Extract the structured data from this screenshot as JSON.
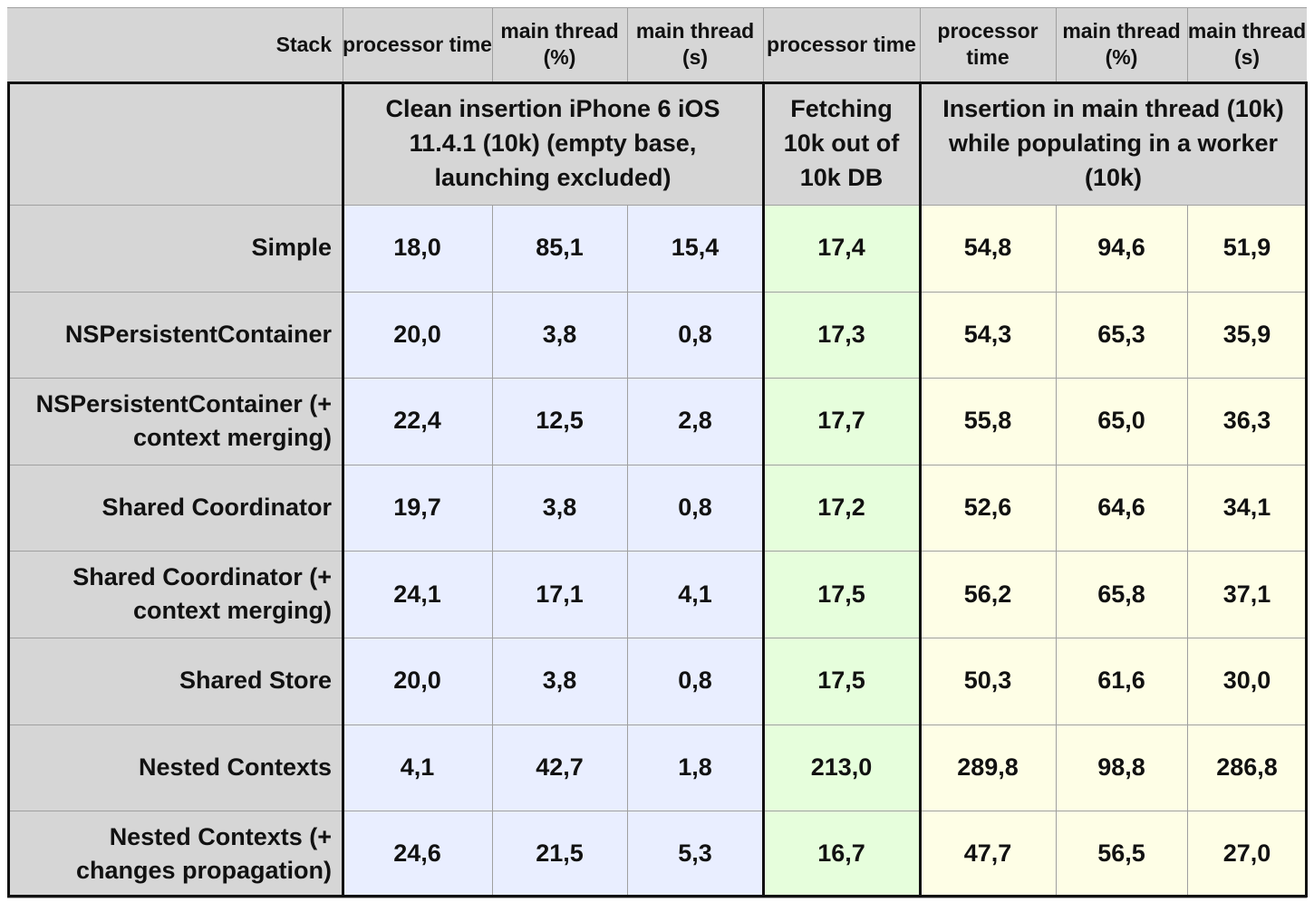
{
  "chart_data": {
    "type": "table",
    "column_headers": [
      "Stack",
      "processor time",
      "main thread (%)",
      "main thread (s)",
      "processor time",
      "processor time",
      "main thread (%)",
      "main thread (s)"
    ],
    "groups": [
      {
        "label": "Clean insertion iPhone 6 iOS 11.4.1 (10k) (empty base, launching excluded)",
        "span": 3
      },
      {
        "label": "Fetching 10k out of 10k DB",
        "span": 1
      },
      {
        "label": "Insertion in main thread (10k) while populating in a worker (10k)",
        "span": 3
      }
    ],
    "rows": [
      {
        "stack": "Simple",
        "values": [
          "18,0",
          "85,1",
          "15,4",
          "17,4",
          "54,8",
          "94,6",
          "51,9"
        ]
      },
      {
        "stack": "NSPersistentContainer",
        "values": [
          "20,0",
          "3,8",
          "0,8",
          "17,3",
          "54,3",
          "65,3",
          "35,9"
        ]
      },
      {
        "stack": "NSPersistentContainer (+ context merging)",
        "values": [
          "22,4",
          "12,5",
          "2,8",
          "17,7",
          "55,8",
          "65,0",
          "36,3"
        ]
      },
      {
        "stack": "Shared Coordinator",
        "values": [
          "19,7",
          "3,8",
          "0,8",
          "17,2",
          "52,6",
          "64,6",
          "34,1"
        ]
      },
      {
        "stack": "Shared Coordinator (+ context merging)",
        "values": [
          "24,1",
          "17,1",
          "4,1",
          "17,5",
          "56,2",
          "65,8",
          "37,1"
        ]
      },
      {
        "stack": "Shared Store",
        "values": [
          "20,0",
          "3,8",
          "0,8",
          "17,5",
          "50,3",
          "61,6",
          "30,0"
        ]
      },
      {
        "stack": "Nested Contexts",
        "values": [
          "4,1",
          "42,7",
          "1,8",
          "213,0",
          "289,8",
          "98,8",
          "286,8"
        ]
      },
      {
        "stack": "Nested Contexts (+ changes propagation)",
        "values": [
          "24,6",
          "21,5",
          "5,3",
          "16,7",
          "47,7",
          "56,5",
          "27,0"
        ]
      }
    ],
    "colors": {
      "header_bg": "#d6d6d6",
      "group1_bg": "#e9eeff",
      "group2_bg": "#e6fedc",
      "group3_bg": "#fefee6"
    }
  }
}
